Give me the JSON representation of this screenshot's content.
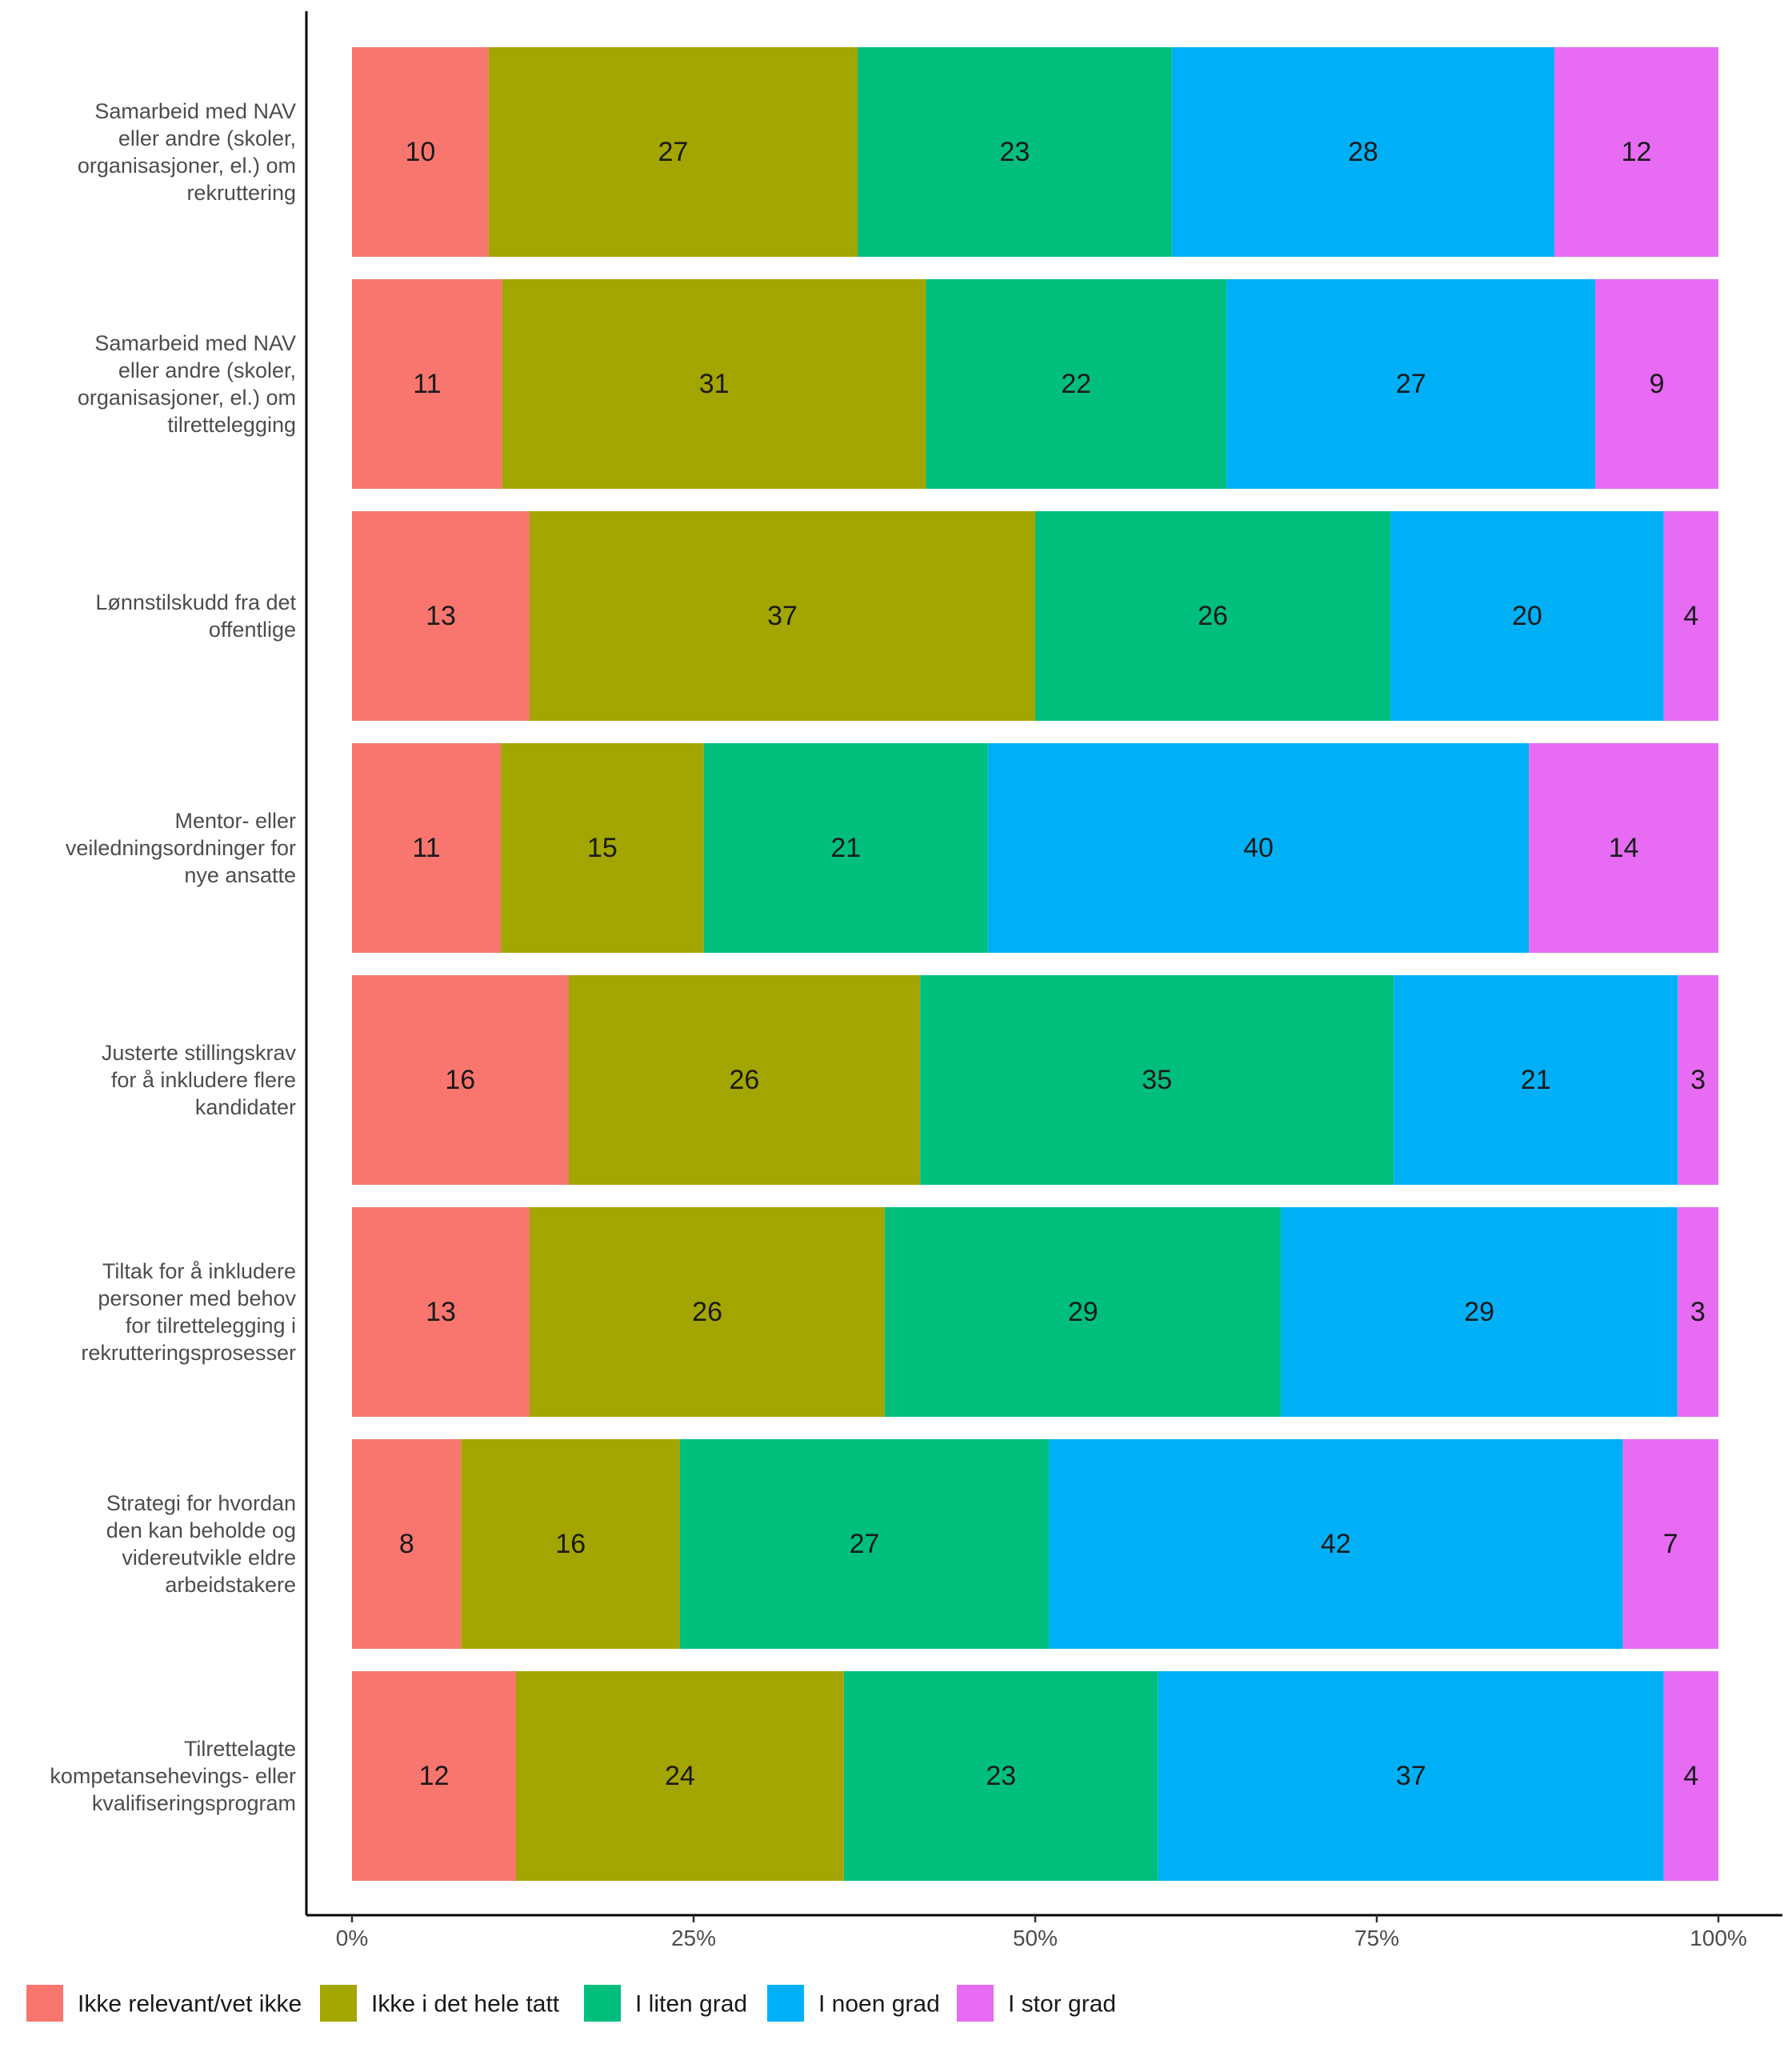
{
  "chart_data": {
    "type": "bar",
    "orientation": "horizontal",
    "stacked": true,
    "normalized": true,
    "title": "",
    "xlabel": "",
    "ylabel": "",
    "xlim": [
      0,
      100
    ],
    "x_ticks": [
      "0%",
      "25%",
      "50%",
      "75%",
      "100%"
    ],
    "grid": false,
    "legend_position": "bottom",
    "categories": [
      "Samarbeid med NAV eller andre (skoler, organisasjoner, el.) om rekruttering",
      "Samarbeid med NAV eller andre (skoler, organisasjoner, el.) om tilrettelegging",
      "Lønnstilskudd fra det offentlige",
      "Mentor- eller veiledningsordninger for nye ansatte",
      "Justerte stillingskrav for å inkludere flere kandidater",
      "Tiltak for å inkludere personer med behov for tilrettelegging i rekrutteringsprosesser",
      "Strategi for hvordan den kan beholde og videreutvikle eldre arbeidstakere",
      "Tilrettelagte kompetansehevings- eller kvalifiseringsprogram"
    ],
    "category_lines": [
      [
        "Samarbeid med NAV",
        "eller andre (skoler,",
        "organisasjoner, el.) om",
        "rekruttering"
      ],
      [
        "Samarbeid med NAV",
        "eller andre (skoler,",
        "organisasjoner, el.) om",
        "tilrettelegging"
      ],
      [
        "Lønnstilskudd fra det",
        "offentlige"
      ],
      [
        "Mentor- eller",
        "veiledningsordninger for",
        "nye ansatte"
      ],
      [
        "Justerte stillingskrav",
        "for å inkludere flere",
        "kandidater"
      ],
      [
        "Tiltak for å inkludere",
        "personer med behov",
        "for tilrettelegging i",
        "rekrutteringsprosesser"
      ],
      [
        "Strategi for hvordan",
        "den kan beholde og",
        "videreutvikle eldre",
        "arbeidstakere"
      ],
      [
        "Tilrettelagte",
        "kompetansehevings- eller",
        "kvalifiseringsprogram"
      ]
    ],
    "series": [
      {
        "name": "Ikke relevant/vet ikke",
        "color": "#F8766D",
        "values": [
          10,
          11,
          13,
          11,
          16,
          13,
          8,
          12
        ]
      },
      {
        "name": "Ikke i det hele tatt",
        "color": "#A3A500",
        "values": [
          27,
          31,
          37,
          15,
          26,
          26,
          16,
          24
        ]
      },
      {
        "name": "I liten grad",
        "color": "#00BF7D",
        "values": [
          23,
          22,
          26,
          21,
          35,
          29,
          27,
          23
        ]
      },
      {
        "name": "I noen grad",
        "color": "#00B0F6",
        "values": [
          28,
          27,
          20,
          40,
          21,
          29,
          42,
          37
        ]
      },
      {
        "name": "I stor grad",
        "color": "#E76BF3",
        "values": [
          12,
          9,
          4,
          14,
          3,
          3,
          7,
          4
        ]
      }
    ]
  }
}
